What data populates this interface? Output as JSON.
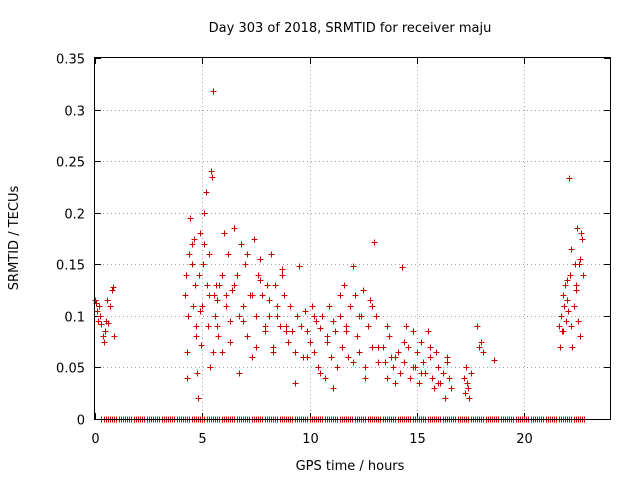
{
  "chart_data": {
    "type": "scatter",
    "title": "Day 303 of 2018, SRMTID for receiver maju",
    "xlabel": "GPS time / hours",
    "ylabel": "SRMTID / TECUs",
    "xlim": [
      0,
      24
    ],
    "ylim": [
      0,
      0.35
    ],
    "xticks": [
      "0",
      "5",
      "10",
      "15",
      "20"
    ],
    "xtick_values": [
      0,
      5,
      10,
      15,
      20
    ],
    "yticks": [
      "0",
      "0.05",
      "0.1",
      "0.15",
      "0.2",
      "0.25",
      "0.3",
      "0.35"
    ],
    "ytick_values": [
      0,
      0.05,
      0.1,
      0.15,
      0.2,
      0.25,
      0.3,
      0.35
    ],
    "grid": true,
    "marker": "+",
    "color": "#cc0000",
    "series": [
      {
        "name": "SRMTID",
        "x": [
          0.0,
          0.05,
          0.1,
          0.15,
          0.2,
          0.25,
          0.3,
          0.35,
          0.4,
          0.45,
          0.5,
          0.55,
          0.6,
          0.7,
          0.8,
          0.85,
          0.9,
          4.2,
          4.25,
          4.3,
          4.35,
          4.4,
          4.45,
          4.5,
          4.55,
          4.6,
          4.65,
          4.7,
          4.75,
          4.8,
          4.85,
          4.9,
          4.95,
          5.0,
          5.05,
          5.1,
          5.15,
          5.2,
          5.25,
          5.3,
          5.35,
          5.4,
          5.45,
          5.5,
          5.55,
          5.6,
          5.65,
          5.7,
          5.75,
          5.8,
          5.9,
          6.0,
          6.1,
          6.2,
          6.3,
          6.4,
          6.5,
          6.6,
          6.7,
          6.8,
          6.9,
          7.0,
          7.1,
          7.2,
          7.3,
          7.4,
          7.5,
          7.6,
          7.7,
          7.8,
          7.9,
          8.0,
          8.1,
          8.2,
          8.3,
          8.4,
          8.5,
          8.6,
          8.7,
          8.8,
          8.9,
          9.0,
          4.3,
          4.5,
          4.7,
          4.9,
          5.1,
          5.3,
          5.5,
          5.7,
          5.9,
          6.1,
          6.3,
          6.5,
          6.7,
          6.9,
          7.1,
          7.3,
          7.5,
          7.7,
          7.9,
          8.1,
          8.3,
          8.5,
          8.7,
          8.9,
          9.1,
          9.2,
          9.3,
          9.4,
          9.5,
          9.6,
          9.7,
          9.8,
          9.9,
          10.0,
          10.1,
          10.2,
          10.3,
          10.4,
          10.5,
          10.6,
          10.7,
          10.8,
          10.9,
          11.0,
          11.1,
          11.2,
          11.3,
          11.4,
          11.5,
          11.6,
          11.7,
          11.8,
          11.9,
          12.0,
          12.1,
          12.2,
          12.3,
          12.4,
          12.5,
          12.6,
          12.7,
          12.8,
          12.9,
          13.0,
          13.1,
          13.2,
          9.3,
          9.6,
          9.9,
          10.2,
          10.5,
          10.8,
          11.1,
          11.4,
          11.7,
          12.0,
          12.3,
          12.6,
          12.9,
          13.2,
          13.4,
          13.5,
          13.6,
          13.7,
          13.8,
          13.9,
          14.0,
          14.1,
          14.2,
          14.3,
          14.4,
          14.5,
          14.6,
          14.7,
          14.8,
          14.9,
          15.0,
          15.1,
          15.2,
          15.3,
          15.4,
          15.5,
          15.6,
          15.7,
          15.8,
          15.9,
          16.0,
          16.1,
          16.2,
          16.3,
          16.4,
          16.5,
          16.6,
          17.2,
          17.25,
          17.3,
          17.35,
          17.4,
          17.45,
          17.5,
          17.8,
          17.9,
          18.0,
          18.1,
          18.6,
          13.6,
          14.0,
          14.4,
          14.8,
          15.2,
          15.6,
          16.0,
          16.4,
          21.6,
          21.65,
          21.7,
          21.75,
          21.8,
          21.85,
          21.9,
          21.95,
          22.0,
          22.05,
          22.1,
          22.15,
          22.2,
          22.25,
          22.3,
          22.35,
          22.4,
          22.45,
          22.5,
          22.55,
          22.6,
          22.65,
          22.7,
          22.75,
          21.8,
          22.0,
          22.2,
          22.4,
          22.6
        ],
        "y": [
          0.115,
          0.112,
          0.105,
          0.095,
          0.11,
          0.1,
          0.092,
          0.08,
          0.075,
          0.085,
          0.095,
          0.115,
          0.093,
          0.11,
          0.125,
          0.128,
          0.08,
          0.12,
          0.14,
          0.04,
          0.1,
          0.16,
          0.195,
          0.17,
          0.11,
          0.175,
          0.13,
          0.09,
          0.045,
          0.02,
          0.14,
          0.18,
          0.072,
          0.11,
          0.15,
          0.2,
          0.22,
          0.13,
          0.09,
          0.16,
          0.05,
          0.24,
          0.235,
          0.318,
          0.12,
          0.1,
          0.13,
          0.115,
          0.08,
          0.13,
          0.065,
          0.18,
          0.12,
          0.16,
          0.095,
          0.125,
          0.185,
          0.14,
          0.1,
          0.17,
          0.11,
          0.15,
          0.08,
          0.12,
          0.06,
          0.175,
          0.1,
          0.14,
          0.155,
          0.12,
          0.09,
          0.13,
          0.1,
          0.16,
          0.07,
          0.13,
          0.11,
          0.09,
          0.145,
          0.12,
          0.085,
          0.075,
          0.065,
          0.15,
          0.08,
          0.105,
          0.17,
          0.12,
          0.065,
          0.09,
          0.14,
          0.11,
          0.075,
          0.13,
          0.045,
          0.095,
          0.16,
          0.12,
          0.07,
          0.135,
          0.085,
          0.115,
          0.065,
          0.1,
          0.14,
          0.09,
          0.11,
          0.085,
          0.065,
          0.1,
          0.148,
          0.09,
          0.06,
          0.105,
          0.085,
          0.075,
          0.11,
          0.065,
          0.095,
          0.05,
          0.088,
          0.1,
          0.04,
          0.08,
          0.11,
          0.06,
          0.095,
          0.085,
          0.05,
          0.1,
          0.07,
          0.13,
          0.09,
          0.06,
          0.11,
          0.148,
          0.12,
          0.08,
          0.065,
          0.1,
          0.125,
          0.05,
          0.09,
          0.115,
          0.07,
          0.172,
          0.1,
          0.055,
          0.035,
          0.09,
          0.06,
          0.1,
          0.045,
          0.075,
          0.03,
          0.12,
          0.085,
          0.055,
          0.1,
          0.04,
          0.11,
          0.07,
          0.07,
          0.055,
          0.04,
          0.08,
          0.06,
          0.05,
          0.035,
          0.065,
          0.045,
          0.147,
          0.055,
          0.09,
          0.07,
          0.04,
          0.085,
          0.05,
          0.065,
          0.035,
          0.075,
          0.055,
          0.045,
          0.085,
          0.06,
          0.04,
          0.03,
          0.065,
          0.05,
          0.035,
          0.045,
          0.02,
          0.055,
          0.04,
          0.03,
          0.04,
          0.025,
          0.05,
          0.035,
          0.03,
          0.02,
          0.045,
          0.09,
          0.07,
          0.075,
          0.065,
          0.057,
          0.09,
          0.06,
          0.075,
          0.05,
          0.045,
          0.07,
          0.035,
          0.06,
          0.09,
          0.07,
          0.1,
          0.085,
          0.12,
          0.11,
          0.13,
          0.095,
          0.135,
          0.105,
          0.234,
          0.14,
          0.165,
          0.07,
          0.11,
          0.15,
          0.13,
          0.185,
          0.095,
          0.15,
          0.08,
          0.18,
          0.175,
          0.14,
          0.085,
          0.115,
          0.09,
          0.125,
          0.155
        ]
      },
      {
        "name": "Zero-level samples",
        "x_start": 0.3,
        "x_end": 22.8,
        "step": 0.1,
        "y": 0
      }
    ]
  }
}
